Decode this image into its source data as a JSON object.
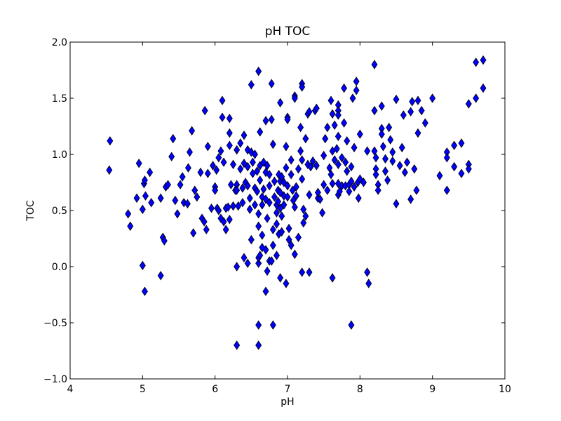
{
  "chart_data": {
    "type": "scatter",
    "title": "pH TOC",
    "xlabel": "pH",
    "ylabel": "TOC",
    "xlim": [
      4,
      10
    ],
    "ylim": [
      -1.0,
      2.0
    ],
    "x_ticks": [
      "4",
      "5",
      "6",
      "7",
      "8",
      "9",
      "10"
    ],
    "y_ticks": [
      "−1.0",
      "−0.5",
      "0.0",
      "0.5",
      "1.0",
      "1.5",
      "2.0"
    ],
    "grid": false,
    "legend": "none",
    "marker": "diamond",
    "marker_color": "#0000ff",
    "series": [
      {
        "points": [
          [
            4.55,
            1.12
          ],
          [
            4.54,
            0.86
          ],
          [
            4.8,
            0.47
          ],
          [
            4.83,
            0.36
          ],
          [
            4.92,
            0.61
          ],
          [
            4.95,
            0.92
          ],
          [
            5.0,
            0.51
          ],
          [
            5.02,
            0.74
          ],
          [
            5.03,
            0.77
          ],
          [
            5.04,
            0.63
          ],
          [
            5.1,
            0.84
          ],
          [
            5.12,
            0.57
          ],
          [
            5.25,
            0.61
          ],
          [
            5.0,
            0.01
          ],
          [
            5.03,
            -0.22
          ],
          [
            5.25,
            -0.08
          ],
          [
            5.28,
            0.26
          ],
          [
            5.3,
            0.23
          ],
          [
            5.32,
            0.71
          ],
          [
            5.35,
            0.73
          ],
          [
            5.4,
            0.98
          ],
          [
            5.42,
            1.14
          ],
          [
            5.45,
            0.59
          ],
          [
            5.48,
            0.47
          ],
          [
            5.52,
            0.73
          ],
          [
            5.55,
            0.8
          ],
          [
            5.57,
            0.57
          ],
          [
            5.62,
            0.56
          ],
          [
            5.63,
            0.88
          ],
          [
            5.65,
            1.02
          ],
          [
            5.68,
            1.21
          ],
          [
            5.7,
            0.3
          ],
          [
            5.72,
            0.68
          ],
          [
            5.75,
            0.62
          ],
          [
            5.8,
            0.84
          ],
          [
            5.82,
            0.43
          ],
          [
            5.85,
            0.4
          ],
          [
            5.86,
            1.39
          ],
          [
            5.88,
            0.33
          ],
          [
            5.9,
            0.83
          ],
          [
            5.9,
            1.07
          ],
          [
            5.95,
            0.52
          ],
          [
            5.97,
            0.9
          ],
          [
            6.0,
            0.71
          ],
          [
            6.0,
            0.68
          ],
          [
            6.02,
            0.86
          ],
          [
            6.03,
            0.52
          ],
          [
            6.05,
            0.97
          ],
          [
            6.05,
            0.5
          ],
          [
            6.08,
            1.03
          ],
          [
            6.08,
            0.43
          ],
          [
            6.1,
            1.33
          ],
          [
            6.1,
            1.48
          ],
          [
            6.12,
            0.93
          ],
          [
            6.12,
            0.4
          ],
          [
            6.15,
            0.52
          ],
          [
            6.15,
            0.33
          ],
          [
            6.18,
            0.53
          ],
          [
            6.2,
            1.08
          ],
          [
            6.2,
            1.19
          ],
          [
            6.2,
            1.32
          ],
          [
            6.2,
            0.42
          ],
          [
            6.22,
            0.73
          ],
          [
            6.25,
            0.91
          ],
          [
            6.25,
            0.54
          ],
          [
            6.28,
            0.68
          ],
          [
            6.3,
            1.04
          ],
          [
            6.3,
            0.73
          ],
          [
            6.3,
            0.68
          ],
          [
            6.32,
            0.54
          ],
          [
            6.35,
            1.1
          ],
          [
            6.35,
            0.87
          ],
          [
            6.38,
            0.57
          ],
          [
            6.38,
            0.7
          ],
          [
            6.4,
            1.17
          ],
          [
            6.4,
            0.92
          ],
          [
            6.42,
            0.75
          ],
          [
            6.45,
            1.04
          ],
          [
            6.45,
            0.89
          ],
          [
            6.45,
            0.72
          ],
          [
            6.48,
            0.61
          ],
          [
            6.48,
            0.51
          ],
          [
            6.5,
            1.62
          ],
          [
            6.5,
            1.02
          ],
          [
            6.52,
            0.93
          ],
          [
            6.52,
            0.83
          ],
          [
            6.55,
            1.0
          ],
          [
            6.55,
            0.7
          ],
          [
            6.55,
            0.55
          ],
          [
            6.58,
            0.85
          ],
          [
            6.58,
            0.67
          ],
          [
            6.6,
            0.47
          ],
          [
            6.6,
            0.36
          ],
          [
            6.6,
            1.74
          ],
          [
            6.62,
            1.2
          ],
          [
            6.62,
            0.9
          ],
          [
            6.62,
            0.77
          ],
          [
            6.65,
            0.62
          ],
          [
            6.65,
            0.55
          ],
          [
            6.65,
            0.28
          ],
          [
            6.67,
            0.93
          ],
          [
            6.67,
            0.69
          ],
          [
            6.7,
            1.3
          ],
          [
            6.7,
            0.84
          ],
          [
            6.7,
            0.6
          ],
          [
            6.72,
            0.9
          ],
          [
            6.72,
            0.43
          ],
          [
            6.75,
            0.82
          ],
          [
            6.75,
            0.72
          ],
          [
            6.75,
            0.57
          ],
          [
            6.78,
            1.63
          ],
          [
            6.78,
            1.31
          ],
          [
            6.8,
            1.09
          ],
          [
            6.8,
            0.33
          ],
          [
            6.82,
            0.76
          ],
          [
            6.82,
            0.62
          ],
          [
            6.85,
            0.55
          ],
          [
            6.85,
            0.48
          ],
          [
            6.85,
            0.38
          ],
          [
            6.87,
            0.68
          ],
          [
            6.87,
            0.58
          ],
          [
            6.88,
            0.82
          ],
          [
            6.88,
            0.29
          ],
          [
            6.9,
            1.46
          ],
          [
            6.9,
            0.76
          ],
          [
            6.9,
            0.66
          ],
          [
            6.9,
            0.52
          ],
          [
            6.92,
            0.8
          ],
          [
            6.92,
            0.45
          ],
          [
            6.92,
            0.31
          ],
          [
            6.95,
            0.75
          ],
          [
            6.95,
            0.63
          ],
          [
            6.95,
            0.55
          ],
          [
            6.98,
            1.07
          ],
          [
            6.98,
            0.88
          ],
          [
            7.0,
            1.33
          ],
          [
            7.0,
            1.31
          ],
          [
            7.0,
            0.72
          ],
          [
            7.0,
            0.62
          ],
          [
            7.02,
            0.34
          ],
          [
            7.02,
            0.24
          ],
          [
            7.05,
            0.95
          ],
          [
            7.05,
            0.82
          ],
          [
            7.07,
            0.68
          ],
          [
            7.08,
            0.59
          ],
          [
            7.1,
            1.52
          ],
          [
            7.1,
            1.5
          ],
          [
            7.1,
            0.53
          ],
          [
            7.12,
            0.71
          ],
          [
            7.12,
            0.63
          ],
          [
            7.15,
            0.87
          ],
          [
            7.15,
            0.26
          ],
          [
            7.18,
            1.03
          ],
          [
            7.18,
            1.24
          ],
          [
            7.2,
            1.63
          ],
          [
            7.2,
            1.6
          ],
          [
            7.2,
            0.95
          ],
          [
            7.2,
            0.78
          ],
          [
            7.22,
            0.51
          ],
          [
            7.22,
            0.39
          ],
          [
            7.25,
            1.14
          ],
          [
            7.25,
            0.45
          ],
          [
            7.28,
            1.36
          ],
          [
            7.28,
            0.91
          ],
          [
            7.3,
            1.38
          ],
          [
            7.3,
            0.64
          ],
          [
            7.32,
            0.89
          ],
          [
            7.35,
            0.94
          ],
          [
            7.38,
            1.39
          ],
          [
            7.4,
            1.41
          ],
          [
            7.4,
            0.9
          ],
          [
            7.42,
            0.61
          ],
          [
            7.42,
            0.66
          ],
          [
            7.45,
            0.6
          ],
          [
            7.48,
            0.48
          ],
          [
            7.5,
            0.73
          ],
          [
            7.5,
            0.99
          ],
          [
            7.52,
            1.14
          ],
          [
            7.55,
            1.24
          ],
          [
            7.55,
            0.68
          ],
          [
            7.58,
            0.88
          ],
          [
            7.6,
            1.48
          ],
          [
            7.6,
            0.82
          ],
          [
            7.62,
            1.36
          ],
          [
            7.62,
            1.03
          ],
          [
            7.62,
            0.74
          ],
          [
            7.65,
            1.26
          ],
          [
            7.65,
            0.95
          ],
          [
            7.68,
            1.05
          ],
          [
            7.7,
            1.44
          ],
          [
            7.7,
            1.39
          ],
          [
            7.7,
            1.35
          ],
          [
            7.7,
            1.16
          ],
          [
            7.7,
            0.91
          ],
          [
            7.7,
            0.74
          ],
          [
            7.7,
            0.64
          ],
          [
            7.72,
            0.67
          ],
          [
            7.75,
            0.72
          ],
          [
            7.75,
            0.97
          ],
          [
            7.78,
            1.59
          ],
          [
            7.78,
            1.28
          ],
          [
            7.8,
            0.72
          ],
          [
            7.8,
            0.93
          ],
          [
            7.82,
            1.12
          ],
          [
            7.82,
            0.85
          ],
          [
            7.85,
            0.73
          ],
          [
            7.85,
            0.67
          ],
          [
            7.88,
            0.89
          ],
          [
            7.88,
            0.76
          ],
          [
            7.9,
            1.5
          ],
          [
            7.92,
            1.06
          ],
          [
            7.92,
            0.71
          ],
          [
            7.95,
            1.57
          ],
          [
            7.95,
            1.65
          ],
          [
            7.97,
            0.75
          ],
          [
            7.98,
            0.61
          ],
          [
            8.0,
            1.18
          ],
          [
            8.0,
            0.78
          ],
          [
            8.05,
            0.75
          ],
          [
            8.1,
            1.03
          ],
          [
            8.2,
            1.8
          ],
          [
            8.2,
            1.39
          ],
          [
            8.2,
            1.03
          ],
          [
            8.22,
            0.97
          ],
          [
            8.22,
            0.87
          ],
          [
            8.22,
            0.82
          ],
          [
            8.25,
            0.73
          ],
          [
            8.25,
            0.68
          ],
          [
            8.3,
            1.43
          ],
          [
            8.3,
            1.23
          ],
          [
            8.3,
            1.18
          ],
          [
            8.32,
            1.07
          ],
          [
            8.35,
            0.96
          ],
          [
            8.35,
            0.85
          ],
          [
            8.38,
            0.77
          ],
          [
            8.4,
            1.24
          ],
          [
            8.42,
            1.13
          ],
          [
            8.45,
            1.02
          ],
          [
            8.45,
            0.94
          ],
          [
            8.5,
            1.49
          ],
          [
            8.5,
            0.56
          ],
          [
            8.55,
            0.9
          ],
          [
            8.58,
            1.06
          ],
          [
            8.6,
            1.35
          ],
          [
            8.62,
            0.84
          ],
          [
            8.65,
            0.93
          ],
          [
            8.7,
            1.38
          ],
          [
            8.7,
            0.6
          ],
          [
            8.72,
            1.47
          ],
          [
            8.75,
            0.87
          ],
          [
            8.78,
            0.68
          ],
          [
            8.8,
            1.48
          ],
          [
            8.8,
            1.19
          ],
          [
            8.85,
            1.39
          ],
          [
            8.9,
            1.28
          ],
          [
            9.0,
            1.5
          ],
          [
            9.1,
            0.81
          ],
          [
            9.2,
            1.02
          ],
          [
            9.2,
            0.97
          ],
          [
            9.2,
            0.68
          ],
          [
            9.3,
            1.08
          ],
          [
            9.3,
            0.89
          ],
          [
            9.4,
            1.1
          ],
          [
            9.4,
            0.83
          ],
          [
            9.5,
            1.45
          ],
          [
            9.5,
            0.91
          ],
          [
            9.5,
            0.87
          ],
          [
            9.6,
            1.82
          ],
          [
            9.6,
            1.5
          ],
          [
            9.7,
            1.84
          ],
          [
            9.7,
            1.59
          ],
          [
            6.3,
            -0.7
          ],
          [
            6.6,
            -0.7
          ],
          [
            6.6,
            -0.52
          ],
          [
            6.8,
            -0.52
          ],
          [
            7.88,
            -0.52
          ],
          [
            6.3,
            0.0
          ],
          [
            6.45,
            0.03
          ],
          [
            6.6,
            0.03
          ],
          [
            6.6,
            0.08
          ],
          [
            6.7,
            0.15
          ],
          [
            6.7,
            -0.22
          ],
          [
            6.75,
            0.05
          ],
          [
            6.8,
            0.19
          ],
          [
            6.9,
            -0.1
          ],
          [
            6.98,
            -0.15
          ],
          [
            7.1,
            0.11
          ],
          [
            7.2,
            -0.05
          ],
          [
            7.3,
            -0.05
          ],
          [
            7.62,
            -0.1
          ],
          [
            8.1,
            -0.05
          ],
          [
            8.12,
            -0.15
          ],
          [
            6.4,
            0.08
          ],
          [
            6.5,
            0.24
          ],
          [
            6.65,
            0.17
          ],
          [
            6.72,
            -0.04
          ],
          [
            6.85,
            0.1
          ],
          [
            7.05,
            0.19
          ],
          [
            6.62,
            0.1
          ],
          [
            6.78,
            0.05
          ]
        ]
      }
    ]
  }
}
